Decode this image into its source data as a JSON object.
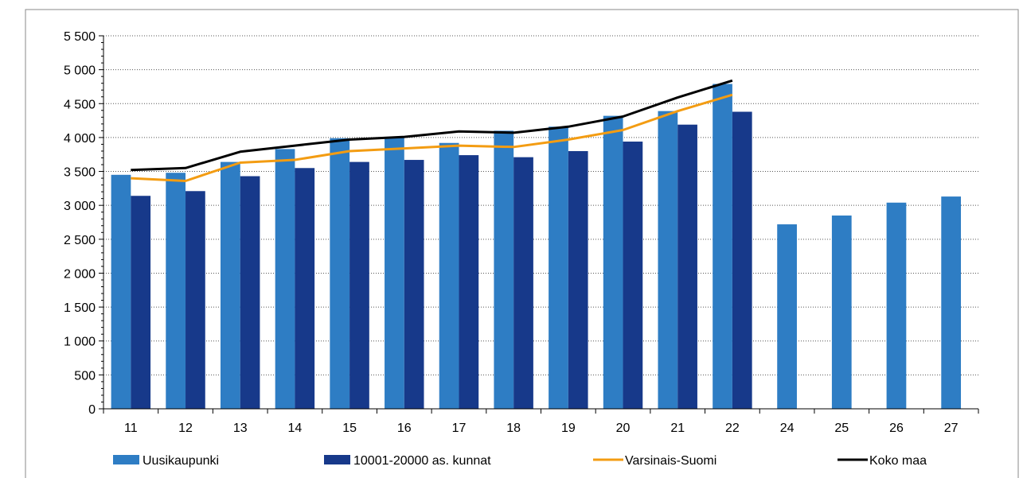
{
  "chart_data": {
    "type": "bar",
    "categories": [
      "11",
      "12",
      "13",
      "14",
      "15",
      "16",
      "17",
      "18",
      "19",
      "20",
      "21",
      "22",
      "24",
      "25",
      "26",
      "27"
    ],
    "series": [
      {
        "name": "Uusikaupunki",
        "kind": "bar",
        "color": "#2E7DC4",
        "values": [
          3450,
          3480,
          3640,
          3830,
          3990,
          4010,
          3920,
          4100,
          4160,
          4320,
          4390,
          4790,
          2720,
          2850,
          3040,
          3130
        ]
      },
      {
        "name": "10001-20000 as. kunnat",
        "kind": "bar",
        "color": "#17398A",
        "values": [
          3140,
          3210,
          3430,
          3550,
          3640,
          3670,
          3740,
          3710,
          3800,
          3940,
          4190,
          4380,
          null,
          null,
          null,
          null
        ]
      },
      {
        "name": "Varsinais-Suomi",
        "kind": "line",
        "color": "#F39C12",
        "values": [
          3400,
          3360,
          3630,
          3670,
          3800,
          3840,
          3880,
          3860,
          3970,
          4110,
          4390,
          4630,
          null,
          null,
          null,
          null
        ]
      },
      {
        "name": "Koko maa",
        "kind": "line",
        "color": "#000000",
        "values": [
          3520,
          3550,
          3790,
          3880,
          3970,
          4010,
          4090,
          4070,
          4160,
          4310,
          4590,
          4840,
          null,
          null,
          null,
          null
        ]
      }
    ],
    "ylim": [
      0,
      5500
    ],
    "yticks": [
      {
        "value": 0,
        "label": "0"
      },
      {
        "value": 500,
        "label": "500"
      },
      {
        "value": 1000,
        "label": "1 000"
      },
      {
        "value": 1500,
        "label": "1 500"
      },
      {
        "value": 2000,
        "label": "2 000"
      },
      {
        "value": 2500,
        "label": "2 500"
      },
      {
        "value": 3000,
        "label": "3 000"
      },
      {
        "value": 3500,
        "label": "3 500"
      },
      {
        "value": 4000,
        "label": "4 000"
      },
      {
        "value": 4500,
        "label": "4 500"
      },
      {
        "value": 5000,
        "label": "5 000"
      },
      {
        "value": 5500,
        "label": "5 500"
      }
    ],
    "grid": "horizontal-dotted",
    "legend_position": "bottom"
  }
}
